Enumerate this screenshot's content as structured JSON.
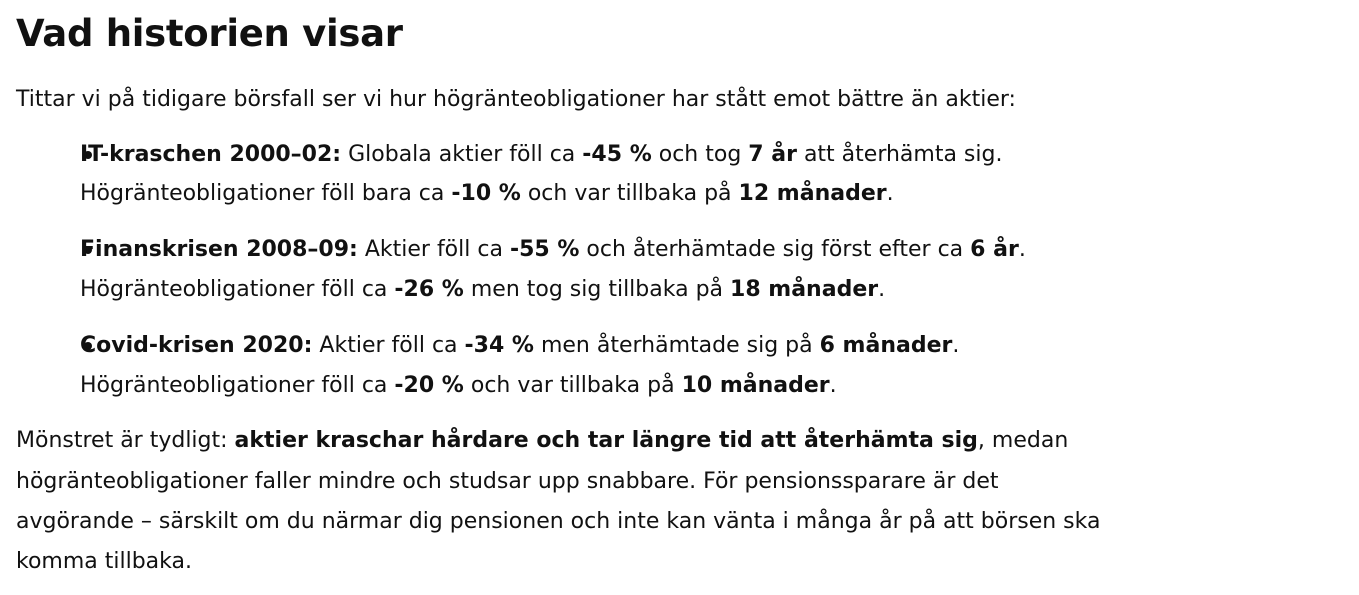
{
  "heading": "Vad historien visar",
  "intro": "Tittar vi på tidigare börsfall ser vi hur högränteobligationer har stått emot bättre än aktier:",
  "items": [
    {
      "title": "IT-kraschen 2000–02:",
      "l1": [
        " Globala aktier föll ca ",
        "-45 %",
        " och tog ",
        "7 år",
        " att återhämta sig."
      ],
      "l2": [
        "Högränteobligationer föll bara ca ",
        "-10 %",
        " och var tillbaka på ",
        "12 månader",
        "."
      ]
    },
    {
      "title": "Finanskrisen 2008–09:",
      "l1": [
        " Aktier föll ca ",
        "-55 %",
        " och återhämtade sig först efter ca ",
        "6 år",
        "."
      ],
      "l2": [
        "Högränteobligationer föll ca ",
        "-26 %",
        " men tog sig tillbaka på ",
        "18 månader",
        "."
      ]
    },
    {
      "title": "Covid-krisen 2020:",
      "l1": [
        " Aktier föll ca ",
        "-34 %",
        " men återhämtade sig på ",
        "6 månader",
        "."
      ],
      "l2": [
        "Högränteobligationer föll ca ",
        "-20 %",
        " och var tillbaka på ",
        "10 månader",
        "."
      ]
    }
  ],
  "conclusion": {
    "l1": [
      "Mönstret är tydligt: ",
      "aktier kraschar hårdare och tar längre tid att återhämta sig",
      ", medan"
    ],
    "l2": "högränteobligationer faller mindre och studsar upp snabbare. För pensionssparare är det",
    "l3": "avgörande – särskilt om du närmar dig pensionen och inte kan vänta i många år på att börsen ska",
    "l4": "komma tillbaka."
  }
}
